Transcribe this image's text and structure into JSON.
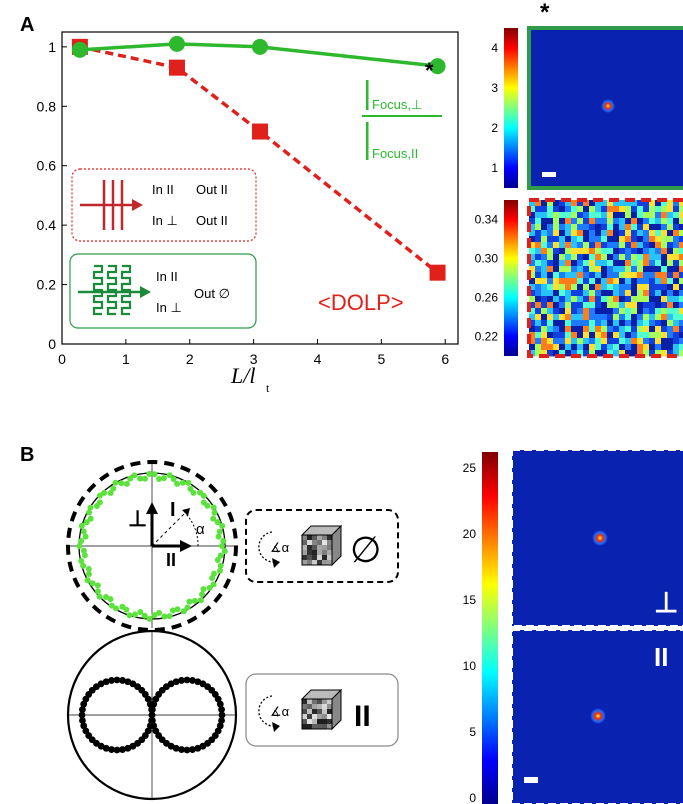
{
  "panel_a": {
    "letter": "A"
  },
  "panel_b": {
    "letter": "B"
  },
  "chart_data": {
    "type": "line",
    "xlabel_main": "L/l",
    "xlabel_sub": "t",
    "xlim": [
      0,
      6.2
    ],
    "ylim": [
      0,
      1.05
    ],
    "x_ticks": [
      "0",
      "1",
      "2",
      "3",
      "4",
      "5",
      "6"
    ],
    "y_ticks": [
      "0",
      "0.2",
      "0.4",
      "0.6",
      "0.8",
      "1"
    ],
    "series": [
      {
        "name": "I Focus,⊥ / I Focus,II",
        "color": "#2db82d",
        "style": "solid",
        "marker": "circle",
        "x": [
          0.28,
          1.8,
          3.1,
          5.88
        ],
        "y": [
          0.99,
          1.01,
          1.0,
          0.935
        ]
      },
      {
        "name": "<DOLP>",
        "color": "#e0201b",
        "style": "dashed",
        "marker": "square",
        "x": [
          0.28,
          1.8,
          3.1,
          5.88
        ],
        "y": [
          1.0,
          0.93,
          0.715,
          0.24
        ]
      }
    ],
    "asterisk": "*",
    "ratio_num": "I",
    "ratio_num_sub": "Focus,⊥",
    "ratio_den": "I",
    "ratio_den_sub": "Focus,II",
    "dolp_label": "<DOLP>",
    "legend_red": {
      "in1": "In II",
      "out1": "Out II",
      "in2": "In ⊥",
      "out2": "Out II"
    },
    "legend_green": {
      "in1": "In II",
      "in2": "In ⊥",
      "out": "Out ∅"
    }
  },
  "colorbars_a": {
    "top_ticks": [
      "4",
      "3",
      "2",
      "1"
    ],
    "bottom_ticks": [
      "0.34",
      "0.30",
      "0.26",
      "0.22"
    ],
    "asterisk": "*"
  },
  "panel_b_diagram": {
    "perp": "⊥",
    "par": "II",
    "intensity": "I",
    "alpha": "α",
    "empty_set": "∅",
    "rot_label": "∡α"
  },
  "colorbar_b": {
    "ticks": [
      "25",
      "20",
      "15",
      "10",
      "5",
      "0"
    ],
    "label_perp": "⊥",
    "label_par": "II"
  },
  "colors": {
    "green": "#2db82d",
    "red": "#e0201b",
    "speckle_dark": "#0a1fa8"
  }
}
